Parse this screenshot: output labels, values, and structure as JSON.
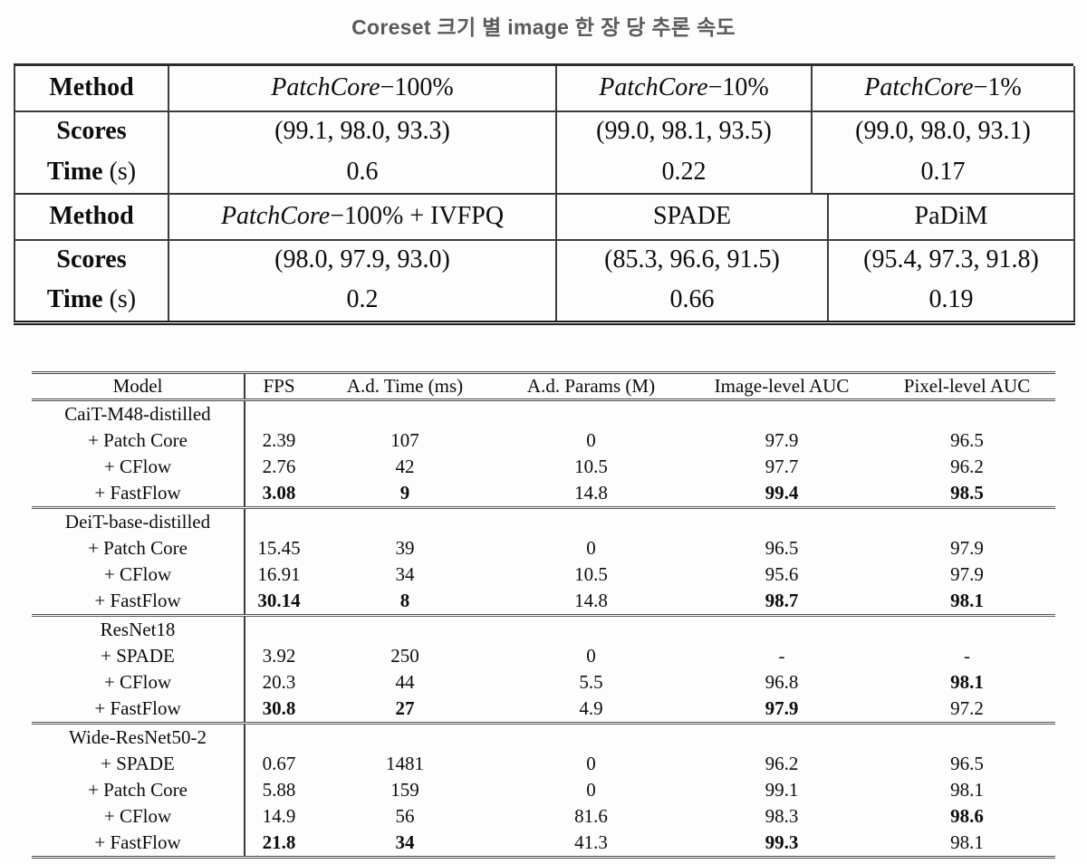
{
  "title": "Coreset 크기 별 image 한 장 당 추론 속도",
  "colors": {
    "title_gray": "#5a5b5e",
    "text": "#0d0d0d",
    "rule": "#3d3d3d",
    "background": "#fdfdfd"
  },
  "speed_tables": [
    {
      "row_labels": {
        "method": "Method",
        "scores": "Scores",
        "time": "Time",
        "time_unit": " (s)"
      },
      "columns": [
        {
          "method_italic": "PatchCore",
          "method_plain": "−100%",
          "scores": "(99.1, 98.0, 93.3)",
          "time": "0.6"
        },
        {
          "method_italic": "PatchCore",
          "method_plain": "−10%",
          "scores": "(99.0, 98.1, 93.5)",
          "time": "0.22"
        },
        {
          "method_italic": "PatchCore",
          "method_plain": "−1%",
          "scores": "(99.0, 98.0, 93.1)",
          "time": "0.17"
        }
      ]
    },
    {
      "row_labels": {
        "method": "Method",
        "scores": "Scores",
        "time": "Time",
        "time_unit": " (s)"
      },
      "columns": [
        {
          "method_italic": "PatchCore",
          "method_plain": "−100% + IVFPQ",
          "scores": "(98.0, 97.9, 93.0)",
          "time": "0.2"
        },
        {
          "method_italic": "",
          "method_plain": "SPADE",
          "scores": "(85.3, 96.6, 91.5)",
          "time": "0.66"
        },
        {
          "method_italic": "",
          "method_plain": "PaDiM",
          "scores": "(95.4, 97.3, 91.8)",
          "time": "0.19"
        }
      ]
    }
  ],
  "benchmark_table": {
    "headers": [
      "Model",
      "FPS",
      "A.d. Time (ms)",
      "A.d. Params (M)",
      "Image-level AUC",
      "Pixel-level AUC"
    ],
    "groups": [
      {
        "name": "CaiT-M48-distilled",
        "rows": [
          {
            "model": "+ Patch Core",
            "cells": [
              "2.39",
              "107",
              "0",
              "97.9",
              "96.5"
            ],
            "bold": []
          },
          {
            "model": "+ CFlow",
            "cells": [
              "2.76",
              "42",
              "10.5",
              "97.7",
              "96.2"
            ],
            "bold": []
          },
          {
            "model": "+ FastFlow",
            "cells": [
              "3.08",
              "9",
              "14.8",
              "99.4",
              "98.5"
            ],
            "bold": [
              0,
              1,
              3,
              4
            ]
          }
        ]
      },
      {
        "name": "DeiT-base-distilled",
        "rows": [
          {
            "model": "+ Patch Core",
            "cells": [
              "15.45",
              "39",
              "0",
              "96.5",
              "97.9"
            ],
            "bold": []
          },
          {
            "model": "+ CFlow",
            "cells": [
              "16.91",
              "34",
              "10.5",
              "95.6",
              "97.9"
            ],
            "bold": []
          },
          {
            "model": "+ FastFlow",
            "cells": [
              "30.14",
              "8",
              "14.8",
              "98.7",
              "98.1"
            ],
            "bold": [
              0,
              1,
              3,
              4
            ]
          }
        ]
      },
      {
        "name": "ResNet18",
        "rows": [
          {
            "model": "+ SPADE",
            "cells": [
              "3.92",
              "250",
              "0",
              "-",
              "-"
            ],
            "bold": []
          },
          {
            "model": "+ CFlow",
            "cells": [
              "20.3",
              "44",
              "5.5",
              "96.8",
              "98.1"
            ],
            "bold": [
              4
            ]
          },
          {
            "model": "+ FastFlow",
            "cells": [
              "30.8",
              "27",
              "4.9",
              "97.9",
              "97.2"
            ],
            "bold": [
              0,
              1,
              3
            ]
          }
        ]
      },
      {
        "name": "Wide-ResNet50-2",
        "rows": [
          {
            "model": "+ SPADE",
            "cells": [
              "0.67",
              "1481",
              "0",
              "96.2",
              "96.5"
            ],
            "bold": []
          },
          {
            "model": "+ Patch Core",
            "cells": [
              "5.88",
              "159",
              "0",
              "99.1",
              "98.1"
            ],
            "bold": []
          },
          {
            "model": "+ CFlow",
            "cells": [
              "14.9",
              "56",
              "81.6",
              "98.3",
              "98.6"
            ],
            "bold": [
              4
            ]
          },
          {
            "model": "+ FastFlow",
            "cells": [
              "21.8",
              "34",
              "41.3",
              "99.3",
              "98.1"
            ],
            "bold": [
              0,
              1,
              3
            ]
          }
        ]
      }
    ]
  }
}
